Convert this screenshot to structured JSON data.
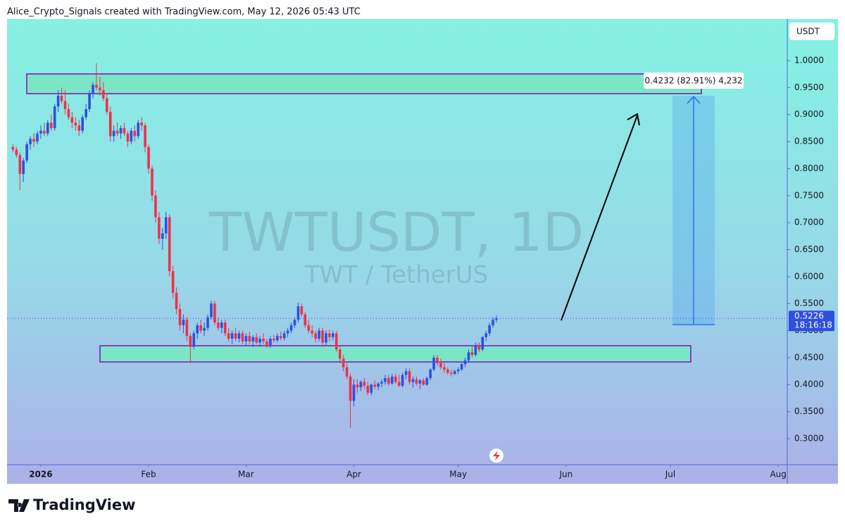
{
  "header": "Alice_Crypto_Signals created with TradingView.com, May 12, 2026 05:43 UTC",
  "footer": "TradingView",
  "chart_data": {
    "type": "candlestick",
    "title": "TWTUSDT, 1D",
    "subtitle": "TWT / TetherUS",
    "y_axis_label": "USDT",
    "up_color": "#2f4fe0",
    "down_color": "#f0304a",
    "xlim": [
      -1.7,
      222.6
    ],
    "xticks": [
      {
        "value": 8,
        "label": "2026"
      },
      {
        "value": 39,
        "label": "Feb"
      },
      {
        "value": 67,
        "label": "Mar"
      },
      {
        "value": 98,
        "label": "Apr"
      },
      {
        "value": 128,
        "label": "May"
      },
      {
        "value": 159,
        "label": "Jun"
      },
      {
        "value": 189,
        "label": "Jul"
      },
      {
        "value": 220,
        "label": "Aug"
      }
    ],
    "ylim": [
      0.2517,
      1.0769
    ],
    "yticks": [
      {
        "value": 0.3,
        "label": "0.3000"
      },
      {
        "value": 0.35,
        "label": "0.3500"
      },
      {
        "value": 0.4,
        "label": "0.4000"
      },
      {
        "value": 0.45,
        "label": "0.4500"
      },
      {
        "value": 0.5,
        "label": "0.5000"
      },
      {
        "value": 0.55,
        "label": "0.5500"
      },
      {
        "value": 0.6,
        "label": "0.6000"
      },
      {
        "value": 0.65,
        "label": "0.6500"
      },
      {
        "value": 0.7,
        "label": "0.7000"
      },
      {
        "value": 0.75,
        "label": "0.7500"
      },
      {
        "value": 0.8,
        "label": "0.8000"
      },
      {
        "value": 0.85,
        "label": "0.8500"
      },
      {
        "value": 0.9,
        "label": "0.9000"
      },
      {
        "value": 0.95,
        "label": "0.9500"
      },
      {
        "value": 1,
        "label": "1.0000"
      }
    ],
    "last_price": 0.5226,
    "countdown": "18:16:18",
    "measure_label": "0.4232 (82.91%) 4,232",
    "ohlc": [
      [
        0.84,
        0.845,
        0.83,
        0.835
      ],
      [
        0.835,
        0.84,
        0.82,
        0.825
      ],
      [
        0.825,
        0.83,
        0.76,
        0.79
      ],
      [
        0.79,
        0.82,
        0.775,
        0.815
      ],
      [
        0.815,
        0.85,
        0.81,
        0.845
      ],
      [
        0.845,
        0.86,
        0.835,
        0.855
      ],
      [
        0.855,
        0.865,
        0.84,
        0.85
      ],
      [
        0.85,
        0.87,
        0.845,
        0.865
      ],
      [
        0.865,
        0.88,
        0.855,
        0.87
      ],
      [
        0.87,
        0.885,
        0.86,
        0.865
      ],
      [
        0.865,
        0.89,
        0.86,
        0.885
      ],
      [
        0.885,
        0.9,
        0.87,
        0.875
      ],
      [
        0.875,
        0.92,
        0.87,
        0.915
      ],
      [
        0.915,
        0.945,
        0.905,
        0.935
      ],
      [
        0.935,
        0.95,
        0.92,
        0.925
      ],
      [
        0.925,
        0.945,
        0.9,
        0.91
      ],
      [
        0.91,
        0.92,
        0.89,
        0.895
      ],
      [
        0.895,
        0.905,
        0.875,
        0.885
      ],
      [
        0.885,
        0.895,
        0.87,
        0.88
      ],
      [
        0.88,
        0.89,
        0.86,
        0.87
      ],
      [
        0.87,
        0.9,
        0.865,
        0.895
      ],
      [
        0.895,
        0.92,
        0.89,
        0.91
      ],
      [
        0.91,
        0.945,
        0.905,
        0.94
      ],
      [
        0.94,
        0.96,
        0.93,
        0.955
      ],
      [
        0.955,
        0.995,
        0.945,
        0.95
      ],
      [
        0.95,
        0.97,
        0.935,
        0.945
      ],
      [
        0.945,
        0.96,
        0.925,
        0.93
      ],
      [
        0.93,
        0.94,
        0.9,
        0.905
      ],
      [
        0.905,
        0.915,
        0.85,
        0.86
      ],
      [
        0.86,
        0.88,
        0.85,
        0.87
      ],
      [
        0.87,
        0.885,
        0.86,
        0.865
      ],
      [
        0.865,
        0.88,
        0.855,
        0.875
      ],
      [
        0.875,
        0.885,
        0.86,
        0.865
      ],
      [
        0.865,
        0.87,
        0.84,
        0.85
      ],
      [
        0.85,
        0.875,
        0.845,
        0.87
      ],
      [
        0.87,
        0.88,
        0.85,
        0.86
      ],
      [
        0.86,
        0.89,
        0.855,
        0.885
      ],
      [
        0.885,
        0.895,
        0.87,
        0.88
      ],
      [
        0.88,
        0.885,
        0.83,
        0.84
      ],
      [
        0.84,
        0.845,
        0.79,
        0.8
      ],
      [
        0.8,
        0.805,
        0.74,
        0.75
      ],
      [
        0.75,
        0.76,
        0.7,
        0.71
      ],
      [
        0.71,
        0.72,
        0.66,
        0.67
      ],
      [
        0.67,
        0.69,
        0.65,
        0.68
      ],
      [
        0.68,
        0.72,
        0.67,
        0.71
      ],
      [
        0.71,
        0.715,
        0.6,
        0.61
      ],
      [
        0.61,
        0.62,
        0.56,
        0.57
      ],
      [
        0.57,
        0.58,
        0.53,
        0.54
      ],
      [
        0.54,
        0.55,
        0.5,
        0.51
      ],
      [
        0.51,
        0.53,
        0.495,
        0.52
      ],
      [
        0.52,
        0.525,
        0.48,
        0.49
      ],
      [
        0.49,
        0.495,
        0.44,
        0.47
      ],
      [
        0.47,
        0.5,
        0.465,
        0.495
      ],
      [
        0.495,
        0.515,
        0.485,
        0.51
      ],
      [
        0.51,
        0.52,
        0.495,
        0.5
      ],
      [
        0.5,
        0.515,
        0.49,
        0.505
      ],
      [
        0.505,
        0.53,
        0.5,
        0.525
      ],
      [
        0.525,
        0.555,
        0.52,
        0.55
      ],
      [
        0.55,
        0.555,
        0.51,
        0.515
      ],
      [
        0.515,
        0.525,
        0.5,
        0.505
      ],
      [
        0.505,
        0.52,
        0.495,
        0.515
      ],
      [
        0.515,
        0.52,
        0.49,
        0.495
      ],
      [
        0.495,
        0.505,
        0.48,
        0.485
      ],
      [
        0.485,
        0.5,
        0.475,
        0.495
      ],
      [
        0.495,
        0.505,
        0.48,
        0.485
      ],
      [
        0.485,
        0.5,
        0.478,
        0.495
      ],
      [
        0.495,
        0.5,
        0.475,
        0.48
      ],
      [
        0.48,
        0.495,
        0.472,
        0.49
      ],
      [
        0.49,
        0.498,
        0.475,
        0.48
      ],
      [
        0.48,
        0.492,
        0.47,
        0.488
      ],
      [
        0.488,
        0.495,
        0.475,
        0.478
      ],
      [
        0.478,
        0.49,
        0.47,
        0.485
      ],
      [
        0.485,
        0.495,
        0.475,
        0.48
      ],
      [
        0.48,
        0.485,
        0.468,
        0.472
      ],
      [
        0.472,
        0.49,
        0.468,
        0.485
      ],
      [
        0.485,
        0.492,
        0.478,
        0.482
      ],
      [
        0.482,
        0.495,
        0.478,
        0.49
      ],
      [
        0.49,
        0.498,
        0.482,
        0.486
      ],
      [
        0.486,
        0.5,
        0.482,
        0.495
      ],
      [
        0.495,
        0.505,
        0.488,
        0.5
      ],
      [
        0.5,
        0.515,
        0.495,
        0.51
      ],
      [
        0.51,
        0.525,
        0.505,
        0.52
      ],
      [
        0.52,
        0.552,
        0.515,
        0.545
      ],
      [
        0.545,
        0.55,
        0.525,
        0.53
      ],
      [
        0.53,
        0.535,
        0.505,
        0.51
      ],
      [
        0.51,
        0.52,
        0.495,
        0.5
      ],
      [
        0.5,
        0.51,
        0.488,
        0.495
      ],
      [
        0.495,
        0.5,
        0.478,
        0.485
      ],
      [
        0.485,
        0.505,
        0.48,
        0.5
      ],
      [
        0.5,
        0.505,
        0.47,
        0.478
      ],
      [
        0.478,
        0.5,
        0.472,
        0.495
      ],
      [
        0.495,
        0.502,
        0.48,
        0.488
      ],
      [
        0.488,
        0.5,
        0.482,
        0.495
      ],
      [
        0.495,
        0.5,
        0.46,
        0.465
      ],
      [
        0.465,
        0.47,
        0.44,
        0.448
      ],
      [
        0.448,
        0.455,
        0.425,
        0.432
      ],
      [
        0.432,
        0.44,
        0.41,
        0.415
      ],
      [
        0.415,
        0.42,
        0.32,
        0.37
      ],
      [
        0.37,
        0.41,
        0.36,
        0.4
      ],
      [
        0.4,
        0.41,
        0.385,
        0.395
      ],
      [
        0.395,
        0.408,
        0.388,
        0.405
      ],
      [
        0.405,
        0.412,
        0.392,
        0.398
      ],
      [
        0.398,
        0.405,
        0.38,
        0.385
      ],
      [
        0.385,
        0.402,
        0.38,
        0.4
      ],
      [
        0.4,
        0.408,
        0.392,
        0.396
      ],
      [
        0.396,
        0.405,
        0.39,
        0.402
      ],
      [
        0.402,
        0.41,
        0.395,
        0.405
      ],
      [
        0.405,
        0.418,
        0.4,
        0.412
      ],
      [
        0.412,
        0.418,
        0.398,
        0.402
      ],
      [
        0.402,
        0.42,
        0.4,
        0.415
      ],
      [
        0.415,
        0.42,
        0.402,
        0.405
      ],
      [
        0.405,
        0.418,
        0.395,
        0.398
      ],
      [
        0.398,
        0.422,
        0.395,
        0.418
      ],
      [
        0.418,
        0.43,
        0.41,
        0.425
      ],
      [
        0.425,
        0.43,
        0.4,
        0.405
      ],
      [
        0.405,
        0.415,
        0.395,
        0.41
      ],
      [
        0.41,
        0.415,
        0.398,
        0.402
      ],
      [
        0.402,
        0.41,
        0.392,
        0.408
      ],
      [
        0.408,
        0.412,
        0.398,
        0.4
      ],
      [
        0.4,
        0.415,
        0.398,
        0.412
      ],
      [
        0.412,
        0.43,
        0.408,
        0.428
      ],
      [
        0.428,
        0.455,
        0.425,
        0.45
      ],
      [
        0.45,
        0.455,
        0.435,
        0.44
      ],
      [
        0.44,
        0.448,
        0.428,
        0.432
      ],
      [
        0.432,
        0.44,
        0.422,
        0.428
      ],
      [
        0.428,
        0.432,
        0.418,
        0.422
      ],
      [
        0.422,
        0.428,
        0.415,
        0.42
      ],
      [
        0.42,
        0.428,
        0.418,
        0.425
      ],
      [
        0.425,
        0.432,
        0.42,
        0.428
      ],
      [
        0.428,
        0.44,
        0.425,
        0.438
      ],
      [
        0.438,
        0.45,
        0.432,
        0.445
      ],
      [
        0.445,
        0.465,
        0.44,
        0.46
      ],
      [
        0.46,
        0.47,
        0.45,
        0.455
      ],
      [
        0.455,
        0.478,
        0.452,
        0.472
      ],
      [
        0.472,
        0.478,
        0.46,
        0.465
      ],
      [
        0.465,
        0.49,
        0.462,
        0.488
      ],
      [
        0.488,
        0.5,
        0.48,
        0.495
      ],
      [
        0.495,
        0.515,
        0.49,
        0.51
      ],
      [
        0.51,
        0.525,
        0.505,
        0.52
      ],
      [
        0.52,
        0.528,
        0.515,
        0.5226
      ]
    ]
  }
}
